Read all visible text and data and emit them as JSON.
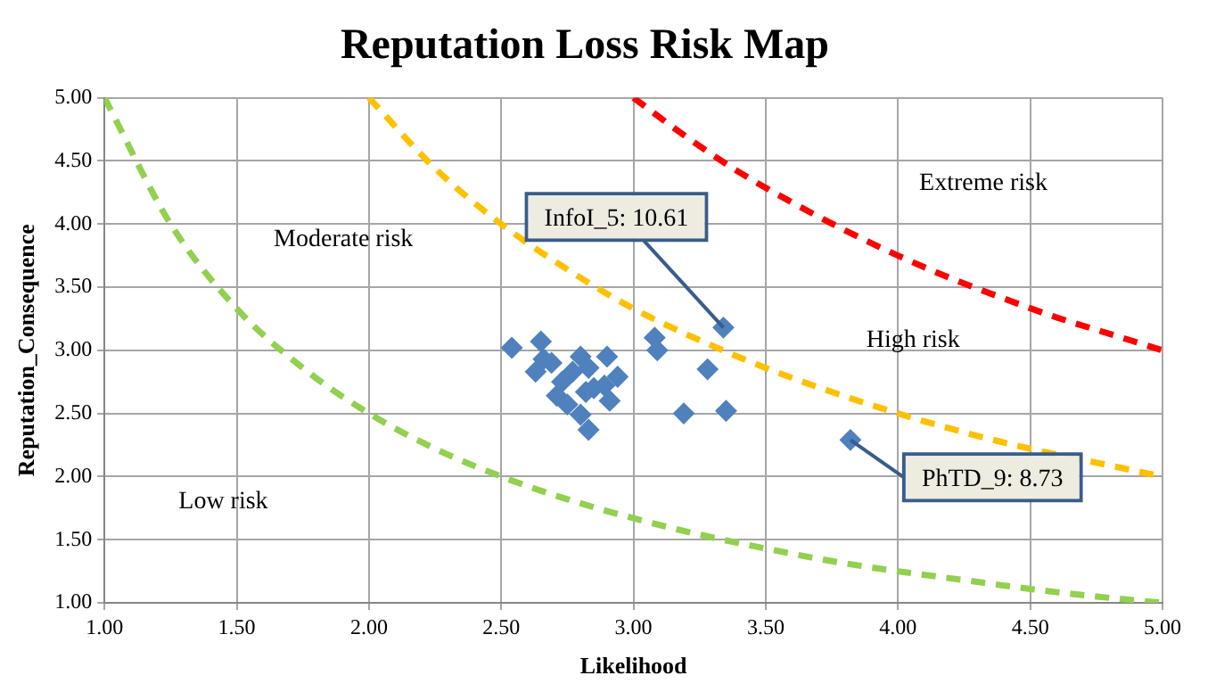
{
  "chart_data": {
    "type": "scatter",
    "title": "Reputation Loss Risk Map",
    "xlabel": "Likelihood",
    "ylabel": "Reputation_Consequence",
    "xlim": [
      1,
      5
    ],
    "ylim": [
      1,
      5
    ],
    "xticks": [
      {
        "value": 1,
        "label": "1.00"
      },
      {
        "value": 1.5,
        "label": "1.50"
      },
      {
        "value": 2,
        "label": "2.00"
      },
      {
        "value": 2.5,
        "label": "2.50"
      },
      {
        "value": 3,
        "label": "3.00"
      },
      {
        "value": 3.5,
        "label": "3.50"
      },
      {
        "value": 4,
        "label": "4.00"
      },
      {
        "value": 4.5,
        "label": "4.50"
      },
      {
        "value": 5,
        "label": "5.00"
      }
    ],
    "yticks": [
      {
        "value": 1,
        "label": "1.00"
      },
      {
        "value": 1.5,
        "label": "1.50"
      },
      {
        "value": 2,
        "label": "2.00"
      },
      {
        "value": 2.5,
        "label": "2.50"
      },
      {
        "value": 3,
        "label": "3.00"
      },
      {
        "value": 3.5,
        "label": "3.50"
      },
      {
        "value": 4,
        "label": "4.00"
      },
      {
        "value": 4.5,
        "label": "4.50"
      },
      {
        "value": 5,
        "label": "5.00"
      }
    ],
    "grid": true,
    "legend": false,
    "marker": "diamond",
    "series": [
      {
        "type": "line",
        "color": "#92d050",
        "line_style": "dashed",
        "marker": "none",
        "x": [
          1,
          1.25,
          1.5,
          1.75,
          2,
          2.25,
          2.5,
          2.75,
          3,
          3.25,
          3.5,
          3.75,
          4,
          4.25,
          4.5,
          4.75,
          5
        ],
        "values": [
          5,
          4,
          3.33,
          2.86,
          2.5,
          2.22,
          2,
          1.82,
          1.67,
          1.54,
          1.43,
          1.33,
          1.25,
          1.18,
          1.11,
          1.05,
          1
        ]
      },
      {
        "type": "line",
        "color": "#ffc000",
        "line_style": "dashed",
        "marker": "none",
        "x": [
          2,
          2.25,
          2.5,
          2.75,
          3,
          3.25,
          3.5,
          3.75,
          4,
          4.25,
          4.5,
          4.75,
          5
        ],
        "values": [
          5,
          4.44,
          4,
          3.64,
          3.33,
          3.08,
          2.86,
          2.67,
          2.5,
          2.35,
          2.22,
          2.11,
          2
        ]
      },
      {
        "type": "line",
        "color": "#ff0000",
        "line_style": "dashed",
        "marker": "none",
        "x": [
          3,
          3.2,
          3.4,
          3.6,
          3.8,
          4,
          4.2,
          4.4,
          4.6,
          4.8,
          5
        ],
        "values": [
          5,
          4.69,
          4.41,
          4.17,
          3.95,
          3.75,
          3.57,
          3.41,
          3.26,
          3.13,
          3
        ]
      },
      {
        "color": "#4f81bd",
        "x": [
          2.54,
          2.65,
          2.66,
          2.63,
          2.69,
          2.71,
          2.75,
          2.8,
          2.77,
          2.8,
          2.83,
          2.82,
          2.87,
          2.9,
          2.91,
          2.94,
          2.89,
          2.83,
          2.85,
          2.73,
          3.08,
          3.09,
          3.28,
          3.19,
          3.35,
          3.34,
          3.82
        ],
        "values": [
          3.02,
          3.07,
          2.93,
          2.83,
          2.9,
          2.64,
          2.57,
          2.49,
          2.83,
          2.95,
          2.86,
          2.67,
          null,
          2.95,
          2.6,
          2.79,
          2.72,
          2.37,
          2.7,
          2.75,
          3.1,
          3.0,
          2.85,
          2.5,
          2.52,
          3.18,
          2.29
        ]
      }
    ],
    "annotations": [
      "Low risk",
      "Moderate risk",
      "High risk",
      "Extreme risk",
      {
        "text": "InfoI_5: 10.61",
        "x": 3.34,
        "y": 3.18
      },
      {
        "text": "PhTD_9: 8.73",
        "x": 3.82,
        "y": 2.29
      }
    ]
  }
}
